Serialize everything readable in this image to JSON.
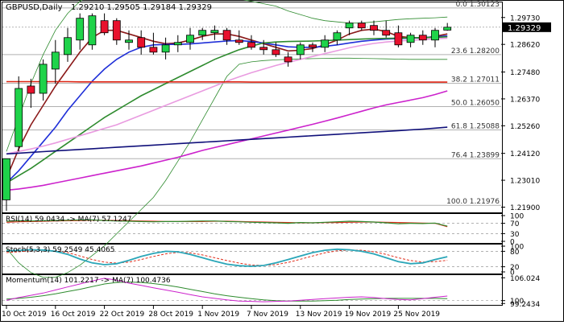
{
  "chart_data": {
    "type": "candlestick",
    "symbol_label": "GBPUSD,Daily",
    "ohlc_label": "1.29210 1.29505 1.29184 1.29329",
    "last_price": 1.29329,
    "last_price_label": "1.29329",
    "price_axis": {
      "ylim": [
        1.2175,
        1.3032
      ],
      "ticks": [
        1.2973,
        1.2862,
        1.2748,
        1.2637,
        1.2526,
        1.2412,
        1.2301,
        1.219
      ],
      "tick_labels": [
        "1.29730",
        "1.28620",
        "1.27480",
        "1.26370",
        "1.25260",
        "1.24120",
        "1.23010",
        "1.21900"
      ]
    },
    "x_labels": [
      "10 Oct 2019",
      "16 Oct 2019",
      "22 Oct 2019",
      "28 Oct 2019",
      "1 Nov 2019",
      "7 Nov 2019",
      "13 Nov 2019",
      "19 Nov 2019",
      "25 Nov 2019"
    ],
    "x_label_index": [
      0,
      4,
      8,
      12,
      16,
      20,
      24,
      28,
      32
    ],
    "candles": [
      {
        "o": 1.222,
        "h": 1.239,
        "l": 1.2175,
        "c": 1.239
      },
      {
        "o": 1.244,
        "h": 1.273,
        "l": 1.242,
        "c": 1.268
      },
      {
        "o": 1.269,
        "h": 1.272,
        "l": 1.26,
        "c": 1.266
      },
      {
        "o": 1.266,
        "h": 1.28,
        "l": 1.263,
        "c": 1.278
      },
      {
        "o": 1.276,
        "h": 1.288,
        "l": 1.27,
        "c": 1.283
      },
      {
        "o": 1.282,
        "h": 1.293,
        "l": 1.279,
        "c": 1.289
      },
      {
        "o": 1.288,
        "h": 1.299,
        "l": 1.284,
        "c": 1.297
      },
      {
        "o": 1.286,
        "h": 1.299,
        "l": 1.284,
        "c": 1.298
      },
      {
        "o": 1.296,
        "h": 1.299,
        "l": 1.29,
        "c": 1.291
      },
      {
        "o": 1.296,
        "h": 1.297,
        "l": 1.286,
        "c": 1.288
      },
      {
        "o": 1.287,
        "h": 1.292,
        "l": 1.284,
        "c": 1.288
      },
      {
        "o": 1.289,
        "h": 1.292,
        "l": 1.282,
        "c": 1.285
      },
      {
        "o": 1.285,
        "h": 1.291,
        "l": 1.282,
        "c": 1.283
      },
      {
        "o": 1.283,
        "h": 1.289,
        "l": 1.28,
        "c": 1.286
      },
      {
        "o": 1.286,
        "h": 1.29,
        "l": 1.283,
        "c": 1.287
      },
      {
        "o": 1.287,
        "h": 1.293,
        "l": 1.284,
        "c": 1.29
      },
      {
        "o": 1.29,
        "h": 1.293,
        "l": 1.288,
        "c": 1.292
      },
      {
        "o": 1.291,
        "h": 1.294,
        "l": 1.288,
        "c": 1.292
      },
      {
        "o": 1.292,
        "h": 1.293,
        "l": 1.286,
        "c": 1.288
      },
      {
        "o": 1.288,
        "h": 1.292,
        "l": 1.286,
        "c": 1.287
      },
      {
        "o": 1.287,
        "h": 1.29,
        "l": 1.284,
        "c": 1.285
      },
      {
        "o": 1.285,
        "h": 1.288,
        "l": 1.282,
        "c": 1.284
      },
      {
        "o": 1.284,
        "h": 1.287,
        "l": 1.281,
        "c": 1.282
      },
      {
        "o": 1.281,
        "h": 1.283,
        "l": 1.277,
        "c": 1.279
      },
      {
        "o": 1.282,
        "h": 1.287,
        "l": 1.28,
        "c": 1.286
      },
      {
        "o": 1.286,
        "h": 1.287,
        "l": 1.283,
        "c": 1.285
      },
      {
        "o": 1.285,
        "h": 1.29,
        "l": 1.283,
        "c": 1.288
      },
      {
        "o": 1.288,
        "h": 1.292,
        "l": 1.286,
        "c": 1.291
      },
      {
        "o": 1.293,
        "h": 1.296,
        "l": 1.29,
        "c": 1.295
      },
      {
        "o": 1.295,
        "h": 1.296,
        "l": 1.292,
        "c": 1.293
      },
      {
        "o": 1.294,
        "h": 1.296,
        "l": 1.29,
        "c": 1.292
      },
      {
        "o": 1.292,
        "h": 1.296,
        "l": 1.289,
        "c": 1.29
      },
      {
        "o": 1.291,
        "h": 1.294,
        "l": 1.285,
        "c": 1.286
      },
      {
        "o": 1.287,
        "h": 1.291,
        "l": 1.285,
        "c": 1.29
      },
      {
        "o": 1.29,
        "h": 1.292,
        "l": 1.286,
        "c": 1.288
      },
      {
        "o": 1.288,
        "h": 1.293,
        "l": 1.285,
        "c": 1.292
      },
      {
        "o": 1.2921,
        "h": 1.29505,
        "l": 1.29184,
        "c": 1.29329
      }
    ],
    "moving_averages": [
      {
        "color": "#8b1a1a",
        "values": [
          1.231,
          1.243,
          1.253,
          1.261,
          1.269,
          1.276,
          1.283,
          1.289,
          1.292,
          1.292,
          1.2905,
          1.289,
          1.2875,
          1.2865,
          1.2868,
          1.288,
          1.2895,
          1.2905,
          1.2905,
          1.2895,
          1.288,
          1.2865,
          1.285,
          1.2835,
          1.2838,
          1.2845,
          1.286,
          1.288,
          1.2905,
          1.292,
          1.2925,
          1.2915,
          1.2895,
          1.289,
          1.2888,
          1.2895,
          1.2905
        ]
      },
      {
        "color": "#1f2fd8",
        "values": [
          1.229,
          1.234,
          1.24,
          1.246,
          1.252,
          1.259,
          1.265,
          1.271,
          1.276,
          1.28,
          1.283,
          1.285,
          1.286,
          1.2862,
          1.2862,
          1.2864,
          1.2868,
          1.2872,
          1.2876,
          1.2878,
          1.2874,
          1.2868,
          1.286,
          1.2852,
          1.285,
          1.285,
          1.2854,
          1.286,
          1.2868,
          1.2875,
          1.288,
          1.2884,
          1.2886,
          1.2888,
          1.289,
          1.2893,
          1.2897
        ]
      },
      {
        "color": "#2e8b2e",
        "values": [
          1.229,
          1.232,
          1.235,
          1.2385,
          1.242,
          1.2455,
          1.249,
          1.2525,
          1.256,
          1.259,
          1.262,
          1.265,
          1.2675,
          1.27,
          1.2725,
          1.275,
          1.2775,
          1.28,
          1.282,
          1.284,
          1.2855,
          1.2868,
          1.2872,
          1.2874,
          1.2875,
          1.2876,
          1.2878,
          1.288,
          1.2882,
          1.2884,
          1.2886,
          1.2887,
          1.2888,
          1.2889,
          1.289,
          1.2891,
          1.2893
        ]
      },
      {
        "color": "#e99be0",
        "values": [
          1.241,
          1.242,
          1.243,
          1.2442,
          1.2455,
          1.247,
          1.2485,
          1.25,
          1.2515,
          1.253,
          1.255,
          1.257,
          1.259,
          1.261,
          1.263,
          1.265,
          1.267,
          1.269,
          1.271,
          1.2728,
          1.2745,
          1.276,
          1.2775,
          1.2788,
          1.28,
          1.2812,
          1.2824,
          1.2836,
          1.2848,
          1.2858,
          1.2866,
          1.2872,
          1.2876,
          1.2879,
          1.2882,
          1.2885,
          1.2888
        ]
      },
      {
        "color": "#cc22cc",
        "values": [
          1.226,
          1.2265,
          1.2272,
          1.228,
          1.229,
          1.23,
          1.231,
          1.232,
          1.233,
          1.234,
          1.235,
          1.236,
          1.2372,
          1.2384,
          1.2396,
          1.241,
          1.2424,
          1.2436,
          1.2448,
          1.246,
          1.2472,
          1.2484,
          1.2496,
          1.2508,
          1.252,
          1.2532,
          1.2545,
          1.2558,
          1.2572,
          1.2586,
          1.26,
          1.2612,
          1.2622,
          1.2632,
          1.2642,
          1.2655,
          1.267
        ]
      },
      {
        "color": "#10107a",
        "values": [
          1.241,
          1.2413,
          1.2416,
          1.2419,
          1.2422,
          1.2425,
          1.2428,
          1.2431,
          1.2434,
          1.2437,
          1.244,
          1.2443,
          1.2446,
          1.2449,
          1.2452,
          1.2455,
          1.2458,
          1.2461,
          1.2464,
          1.2467,
          1.247,
          1.2473,
          1.2476,
          1.2479,
          1.2482,
          1.2485,
          1.2488,
          1.2491,
          1.2494,
          1.2497,
          1.25,
          1.2503,
          1.2506,
          1.2509,
          1.2512,
          1.2516,
          1.252
        ]
      },
      {
        "color": "#dd2211",
        "values": [
          1.2708,
          1.2708,
          1.2708,
          1.2708,
          1.2708,
          1.2708,
          1.2707,
          1.2707,
          1.2707,
          1.2707,
          1.2707,
          1.2707,
          1.2707,
          1.2707,
          1.2707,
          1.2707,
          1.2707,
          1.2707,
          1.2707,
          1.2707,
          1.2706,
          1.2706,
          1.2706,
          1.2706,
          1.2706,
          1.2706,
          1.2706,
          1.2706,
          1.2706,
          1.2706,
          1.2706,
          1.2706,
          1.2706,
          1.2706,
          1.2706,
          1.2706,
          1.2706
        ]
      }
    ],
    "bollinger": {
      "color": "#2e8b2e",
      "upper": [
        1.242,
        1.256,
        1.27,
        1.282,
        1.292,
        1.299,
        1.304,
        1.307,
        1.309,
        1.31,
        1.31,
        1.3095,
        1.309,
        1.3085,
        1.308,
        1.3075,
        1.307,
        1.3065,
        1.306,
        1.305,
        1.304,
        1.303,
        1.302,
        1.3,
        1.2985,
        1.297,
        1.296,
        1.2955,
        1.295,
        1.295,
        1.2955,
        1.296,
        1.2965,
        1.2968,
        1.297,
        1.2972,
        1.2975
      ],
      "lower": [
        1.202,
        1.196,
        1.192,
        1.19,
        1.19,
        1.192,
        1.195,
        1.199,
        1.203,
        1.208,
        1.213,
        1.218,
        1.223,
        1.23,
        1.238,
        1.246,
        1.255,
        1.264,
        1.273,
        1.278,
        1.279,
        1.2795,
        1.2798,
        1.28,
        1.2802,
        1.2803,
        1.2804,
        1.2805,
        1.2805,
        1.2804,
        1.2803,
        1.2802,
        1.2801,
        1.28,
        1.28,
        1.28,
        1.28
      ]
    },
    "fibonacci": [
      {
        "label": "0.0 1.30123",
        "level": 1.30123
      },
      {
        "label": "23.6 1.28200",
        "level": 1.282
      },
      {
        "label": "38.2 1.27011",
        "level": 1.27011
      },
      {
        "label": "50.0 1.26050",
        "level": 1.2605
      },
      {
        "label": "61.8 1.25088",
        "level": 1.25088
      },
      {
        "label": "76.4 1.23899",
        "level": 1.23899
      },
      {
        "label": "100.0 1.21976",
        "level": 1.21976
      }
    ],
    "rsi": {
      "label": "RSI(14) 59.0434 -> MA(7) 57.1247",
      "ylim": [
        0,
        100
      ],
      "ticks": [
        100,
        70,
        30,
        0
      ],
      "tick_labels": [
        "100",
        "70",
        "30",
        "0"
      ],
      "values": [
        78,
        80,
        79,
        80,
        81,
        82,
        83,
        83,
        81,
        79,
        78,
        77,
        76,
        77,
        77,
        78,
        79,
        79,
        77,
        76,
        74,
        73,
        72,
        70,
        73,
        72,
        74,
        76,
        78,
        77,
        75,
        72,
        68,
        70,
        69,
        71,
        59
      ],
      "ma": [
        74,
        76,
        77,
        78,
        79,
        80,
        81,
        82,
        82,
        81,
        80,
        79,
        78,
        77,
        77,
        77,
        77,
        78,
        78,
        77,
        76,
        75,
        74,
        73,
        72,
        72,
        73,
        73,
        74,
        75,
        75,
        74,
        73,
        72,
        71,
        70,
        57
      ]
    },
    "stoch": {
      "label": "Stoch(5,3,3) 59.2549 45.4065",
      "ylim": [
        0,
        100
      ],
      "ticks": [
        100,
        80,
        20,
        0
      ],
      "tick_labels": [
        "100",
        "80",
        "20",
        "0"
      ],
      "main": [
        82,
        84,
        86,
        85,
        80,
        68,
        50,
        35,
        28,
        32,
        45,
        60,
        72,
        80,
        78,
        68,
        55,
        42,
        30,
        24,
        22,
        25,
        35,
        48,
        62,
        75,
        84,
        88,
        86,
        80,
        70,
        55,
        40,
        32,
        35,
        48,
        59
      ],
      "signal": [
        75,
        78,
        82,
        84,
        82,
        75,
        62,
        48,
        38,
        34,
        38,
        48,
        60,
        70,
        76,
        74,
        66,
        55,
        44,
        34,
        27,
        25,
        28,
        37,
        49,
        62,
        74,
        82,
        85,
        84,
        78,
        68,
        55,
        44,
        38,
        40,
        45
      ]
    },
    "momentum": {
      "label": "Momentum(14) 101.2217 -> MA(7) 100.4736",
      "ylim": [
        99.3,
        106.3
      ],
      "ticks": [
        106.024,
        100.0,
        99.2434
      ],
      "tick_labels": [
        "106.024",
        "100",
        "99.2434"
      ],
      "values": [
        100.1,
        100.8,
        101.4,
        102.0,
        102.8,
        103.6,
        104.4,
        105.2,
        105.9,
        105.4,
        104.6,
        104.0,
        103.4,
        102.8,
        102.2,
        101.6,
        101.0,
        100.6,
        100.2,
        99.9,
        99.8,
        99.7,
        99.8,
        99.9,
        100.1,
        100.3,
        100.5,
        100.7,
        100.9,
        101.0,
        100.8,
        100.5,
        100.3,
        100.2,
        100.5,
        100.9,
        101.2
      ],
      "ma": [
        100.4,
        100.6,
        100.9,
        101.3,
        101.8,
        102.4,
        103.0,
        103.7,
        104.4,
        104.8,
        104.9,
        104.8,
        104.5,
        104.1,
        103.6,
        103.0,
        102.4,
        101.8,
        101.3,
        100.9,
        100.5,
        100.2,
        100.0,
        99.9,
        99.9,
        99.9,
        100.0,
        100.1,
        100.3,
        100.4,
        100.5,
        100.6,
        100.6,
        100.6,
        100.6,
        100.6,
        100.5
      ]
    },
    "colors": {
      "bull_candle": "#1fd34a",
      "bear_candle": "#e8112d",
      "candle_outline": "#000000",
      "indicator_main": "#2aa6b8",
      "indicator_signal": "#e0301e",
      "momentum_line": "#cc22cc",
      "momentum_ma": "#2e8b2e",
      "grid": "#c8c8c8"
    }
  }
}
